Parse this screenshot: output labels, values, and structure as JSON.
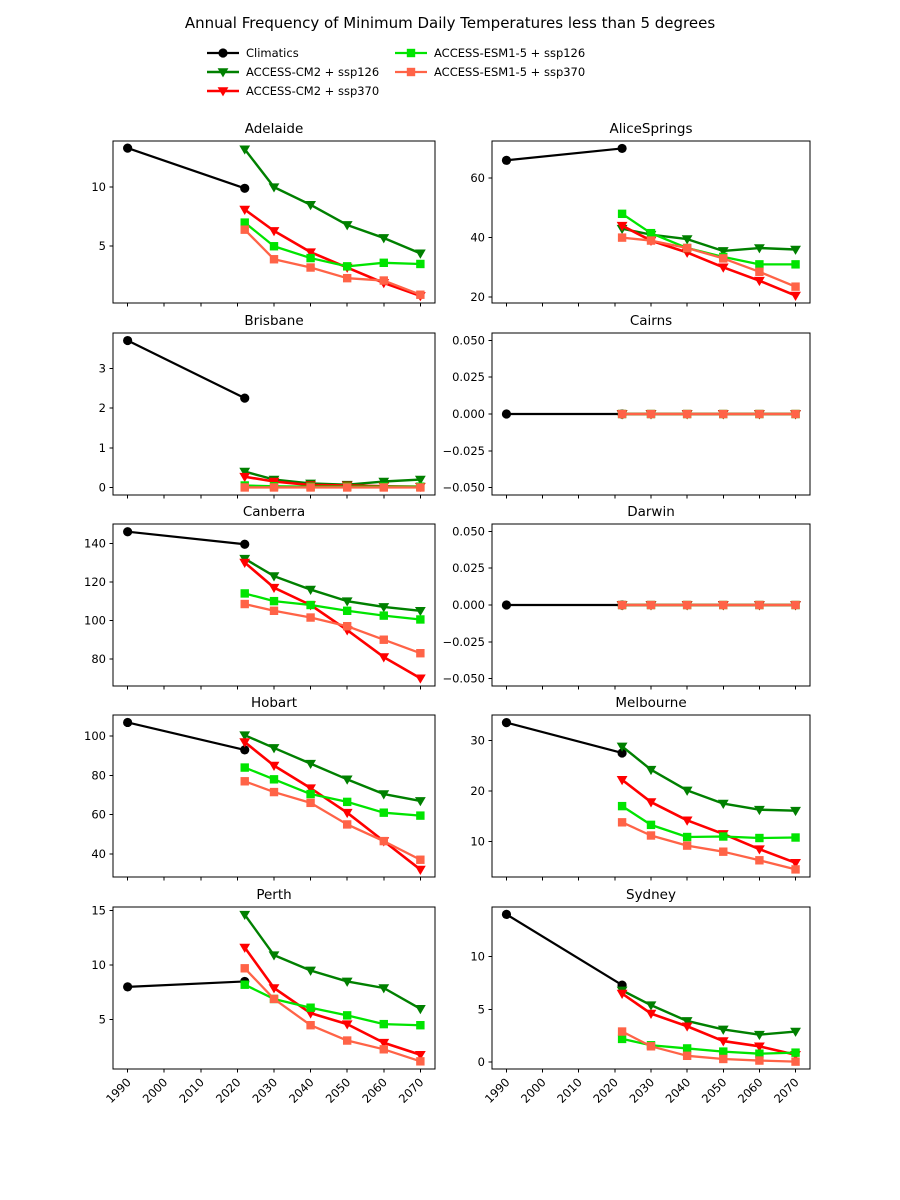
{
  "chart_data": {
    "type": "line",
    "figure_title": "Annual Frequency of Minimum Daily Temperatures less than 5 degrees",
    "xlim": [
      1986,
      2074
    ],
    "xticks": [
      1990,
      2000,
      2010,
      2020,
      2030,
      2040,
      2050,
      2060,
      2070
    ],
    "x_years_observed": [
      1990,
      2022
    ],
    "x_years_model": [
      2022,
      2030,
      2040,
      2050,
      2060,
      2070
    ],
    "series_defs": [
      {
        "id": "climatics",
        "label": "Climatics",
        "color": "#000000",
        "marker": "circle",
        "linewidth": 2.2
      },
      {
        "id": "cm2_126",
        "label": "ACCESS-CM2 + ssp126",
        "color": "#008000",
        "marker": "triangle",
        "linewidth": 2.4
      },
      {
        "id": "cm2_370",
        "label": "ACCESS-CM2 + ssp370",
        "color": "#ff0000",
        "marker": "triangle",
        "linewidth": 2.6
      },
      {
        "id": "esm_126",
        "label": "ACCESS-ESM1-5 + ssp126",
        "color": "#00e400",
        "marker": "square",
        "linewidth": 2.3
      },
      {
        "id": "esm_370",
        "label": "ACCESS-ESM1-5 + ssp370",
        "color": "#ff6347",
        "marker": "square",
        "linewidth": 2.3
      }
    ],
    "subplots": [
      {
        "title": "Adelaide",
        "ylim": [
          0.2,
          13.9
        ],
        "yticks": [
          5,
          10
        ],
        "ytick_decimals": 0,
        "values": {
          "climatics": [
            13.3,
            9.9
          ],
          "cm2_126": [
            13.2,
            10.0,
            8.5,
            6.8,
            5.7,
            4.4
          ],
          "cm2_370": [
            8.1,
            6.3,
            4.5,
            3.2,
            1.9,
            0.8
          ],
          "esm_126": [
            7.0,
            5.0,
            4.0,
            3.3,
            3.6,
            3.5
          ],
          "esm_370": [
            6.4,
            3.9,
            3.2,
            2.3,
            2.1,
            0.9
          ]
        }
      },
      {
        "title": "AliceSprings",
        "ylim": [
          18.0,
          72.5
        ],
        "yticks": [
          20,
          40,
          60
        ],
        "ytick_decimals": 0,
        "values": {
          "climatics": [
            66,
            70
          ],
          "cm2_126": [
            43,
            41,
            39.5,
            35.5,
            36.5,
            36
          ],
          "cm2_370": [
            44,
            39,
            35,
            30,
            25.5,
            20.5
          ],
          "esm_126": [
            48,
            41.5,
            36.5,
            33.5,
            31,
            31
          ],
          "esm_370": [
            40,
            39,
            36.5,
            33,
            28.5,
            23.5
          ]
        }
      },
      {
        "title": "Brisbane",
        "ylim": [
          -0.19,
          3.89
        ],
        "yticks": [
          0,
          1,
          2,
          3
        ],
        "ytick_decimals": 0,
        "values": {
          "climatics": [
            3.7,
            2.25
          ],
          "cm2_126": [
            0.4,
            0.2,
            0.1,
            0.07,
            0.15,
            0.2
          ],
          "cm2_370": [
            0.27,
            0.15,
            0.06,
            0.05,
            0.03,
            0.02
          ],
          "esm_126": [
            0.05,
            0.03,
            0.02,
            0.02,
            0.02,
            0.02
          ],
          "esm_370": [
            0.0,
            0.0,
            0.0,
            0.0,
            0.0,
            0.0
          ]
        }
      },
      {
        "title": "Cairns",
        "ylim": [
          -0.055,
          0.055
        ],
        "yticks": [
          -0.05,
          -0.025,
          0.0,
          0.025,
          0.05
        ],
        "ytick_decimals": 3,
        "values": {
          "climatics": [
            0,
            0
          ],
          "cm2_126": [
            0,
            0,
            0,
            0,
            0,
            0
          ],
          "cm2_370": [
            0,
            0,
            0,
            0,
            0,
            0
          ],
          "esm_126": [
            0,
            0,
            0,
            0,
            0,
            0
          ],
          "esm_370": [
            0,
            0,
            0,
            0,
            0,
            0
          ]
        }
      },
      {
        "title": "Canberra",
        "ylim": [
          66.0,
          150.0
        ],
        "yticks": [
          80,
          100,
          120,
          140
        ],
        "ytick_decimals": 0,
        "values": {
          "climatics": [
            146,
            139.5
          ],
          "cm2_126": [
            132,
            123,
            116,
            110,
            107,
            105
          ],
          "cm2_370": [
            130,
            117,
            108,
            95,
            81,
            70
          ],
          "esm_126": [
            114,
            110,
            108,
            105,
            102.5,
            100.5
          ],
          "esm_370": [
            108.5,
            105,
            101.5,
            97,
            90,
            83
          ]
        }
      },
      {
        "title": "Darwin",
        "ylim": [
          -0.055,
          0.055
        ],
        "yticks": [
          -0.05,
          -0.025,
          0.0,
          0.025,
          0.05
        ],
        "ytick_decimals": 3,
        "values": {
          "climatics": [
            0,
            0
          ],
          "cm2_126": [
            0,
            0,
            0,
            0,
            0,
            0
          ],
          "cm2_370": [
            0,
            0,
            0,
            0,
            0,
            0
          ],
          "esm_126": [
            0,
            0,
            0,
            0,
            0,
            0
          ],
          "esm_370": [
            0,
            0,
            0,
            0,
            0,
            0
          ]
        }
      },
      {
        "title": "Hobart",
        "ylim": [
          28.2,
          110.8
        ],
        "yticks": [
          40,
          60,
          80,
          100
        ],
        "ytick_decimals": 0,
        "values": {
          "climatics": [
            107,
            93
          ],
          "cm2_126": [
            100.5,
            94,
            86,
            78,
            70.5,
            67
          ],
          "cm2_370": [
            97,
            85,
            73.5,
            61,
            46.5,
            32
          ],
          "esm_126": [
            84,
            78,
            70.5,
            66.5,
            61,
            59.5
          ],
          "esm_370": [
            77,
            71.5,
            66,
            55,
            46.5,
            37
          ]
        }
      },
      {
        "title": "Melbourne",
        "ylim": [
          3.0,
          35.0
        ],
        "yticks": [
          10,
          20,
          30
        ],
        "ytick_decimals": 0,
        "values": {
          "climatics": [
            33.5,
            27.5
          ],
          "cm2_126": [
            28.8,
            24.2,
            20.1,
            17.5,
            16.3,
            16.1
          ],
          "cm2_370": [
            22.2,
            17.8,
            14.2,
            11.5,
            8.5,
            5.8
          ],
          "esm_126": [
            17,
            13.3,
            10.9,
            11,
            10.7,
            10.8
          ],
          "esm_370": [
            13.8,
            11.2,
            9.2,
            8,
            6.3,
            4.5
          ]
        }
      },
      {
        "title": "Perth",
        "ylim": [
          0.5,
          15.3
        ],
        "yticks": [
          5,
          10,
          15
        ],
        "ytick_decimals": 0,
        "values": {
          "climatics": [
            8.0,
            8.5
          ],
          "cm2_126": [
            14.6,
            10.9,
            9.5,
            8.5,
            7.9,
            6.0
          ],
          "cm2_370": [
            11.6,
            7.9,
            5.6,
            4.6,
            2.9,
            1.8
          ],
          "esm_126": [
            8.2,
            6.9,
            6.1,
            5.4,
            4.6,
            4.5
          ],
          "esm_370": [
            9.7,
            6.9,
            4.5,
            3.1,
            2.3,
            1.2
          ]
        }
      },
      {
        "title": "Sydney",
        "ylim": [
          -0.65,
          14.7
        ],
        "yticks": [
          0,
          5,
          10
        ],
        "ytick_decimals": 0,
        "values": {
          "climatics": [
            14,
            7.3
          ],
          "cm2_126": [
            6.8,
            5.4,
            3.9,
            3.1,
            2.6,
            2.9
          ],
          "cm2_370": [
            6.5,
            4.6,
            3.4,
            2.0,
            1.5,
            0.7
          ],
          "esm_126": [
            2.2,
            1.6,
            1.3,
            1.0,
            0.8,
            0.9
          ],
          "esm_370": [
            2.9,
            1.5,
            0.6,
            0.3,
            0.15,
            0.05
          ]
        }
      }
    ]
  }
}
